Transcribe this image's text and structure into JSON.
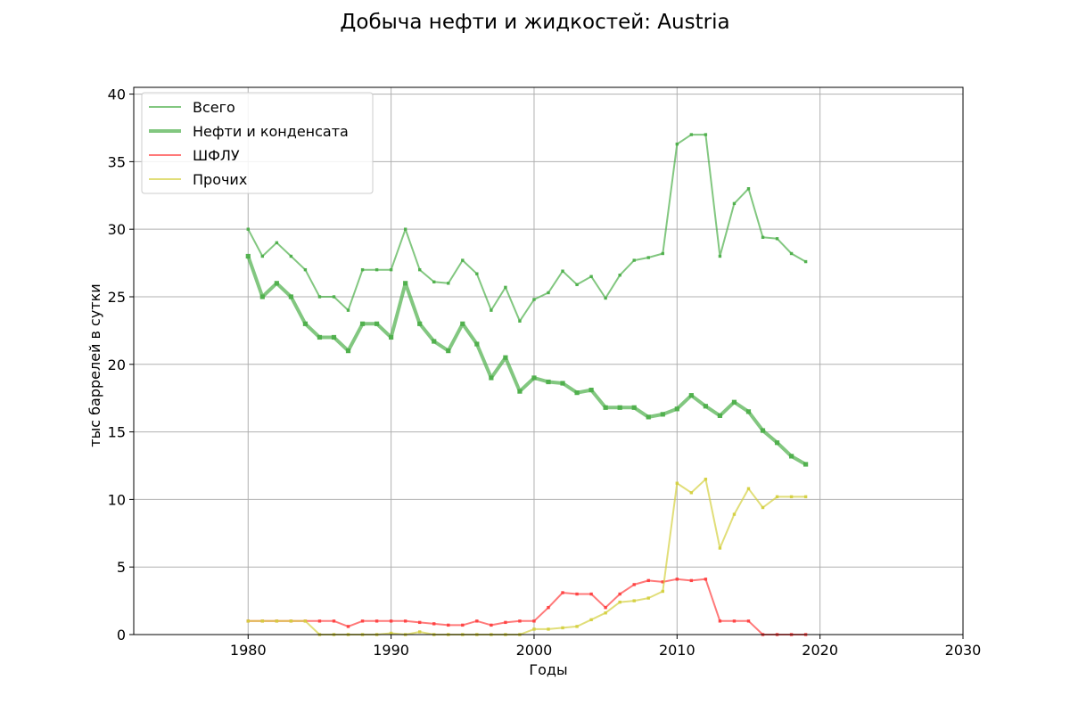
{
  "chart_data": {
    "type": "line",
    "title": "Добыча нефти и жидкостей: Austria",
    "xlabel": "Годы",
    "ylabel": "тыс баррелей в сутки",
    "xlim": [
      1972,
      2030
    ],
    "ylim": [
      0,
      40.5
    ],
    "xticks": [
      1980,
      1990,
      2000,
      2010,
      2020,
      2030
    ],
    "yticks": [
      0,
      5,
      10,
      15,
      20,
      25,
      30,
      35,
      40
    ],
    "grid": true,
    "legend_position": "top-left",
    "x": [
      1980,
      1981,
      1982,
      1983,
      1984,
      1985,
      1986,
      1987,
      1988,
      1989,
      1990,
      1991,
      1992,
      1993,
      1994,
      1995,
      1996,
      1997,
      1998,
      1999,
      2000,
      2001,
      2002,
      2003,
      2004,
      2005,
      2006,
      2007,
      2008,
      2009,
      2010,
      2011,
      2012,
      2013,
      2014,
      2015,
      2016,
      2017,
      2018,
      2019
    ],
    "series": [
      {
        "name": "Всего",
        "color": "#4daf4a",
        "width": 2,
        "values": [
          30,
          28,
          29,
          28,
          27,
          25,
          25,
          24,
          27,
          27,
          27,
          30,
          27,
          26.1,
          26,
          27.7,
          26.7,
          24,
          25.7,
          23.2,
          24.8,
          25.3,
          26.9,
          25.9,
          26.5,
          24.9,
          26.6,
          27.7,
          27.9,
          28.2,
          36.3,
          37,
          37,
          28,
          31.9,
          33,
          29.4,
          29.3,
          28.2,
          27.6
        ]
      },
      {
        "name": "Нефти и конденсата",
        "color": "#4daf4a",
        "width": 4,
        "values": [
          28,
          25,
          26,
          25,
          23,
          22,
          22,
          21,
          23,
          23,
          22,
          26,
          23,
          21.7,
          21,
          23,
          21.5,
          19,
          20.5,
          18,
          19,
          18.7,
          18.6,
          17.9,
          18.1,
          16.8,
          16.8,
          16.8,
          16.1,
          16.3,
          16.7,
          17.7,
          16.9,
          16.2,
          17.2,
          16.5,
          15.1,
          14.2,
          13.2,
          12.6
        ]
      },
      {
        "name": "ШФЛУ",
        "color": "#ff4040",
        "width": 2,
        "values": [
          1,
          1,
          1,
          1,
          1,
          1,
          1,
          0.6,
          1,
          1,
          1,
          1,
          0.9,
          0.8,
          0.7,
          0.7,
          1,
          0.7,
          0.9,
          1,
          1,
          2,
          3.1,
          3,
          3,
          2,
          3,
          3.7,
          4,
          3.9,
          4.1,
          4,
          4.1,
          1,
          1,
          1,
          0,
          0,
          0,
          0
        ]
      },
      {
        "name": "Прочих",
        "color": "#d4d040",
        "width": 2,
        "values": [
          1,
          1,
          1,
          1,
          1,
          0,
          0,
          0,
          0,
          0,
          0.1,
          0,
          0.2,
          0,
          0,
          0,
          0,
          0,
          0,
          0,
          0.4,
          0.4,
          0.5,
          0.6,
          1.1,
          1.6,
          2.4,
          2.5,
          2.7,
          3.2,
          11.2,
          10.5,
          11.5,
          6.4,
          8.9,
          10.8,
          9.4,
          10.2,
          10.2,
          10.2
        ]
      }
    ]
  }
}
